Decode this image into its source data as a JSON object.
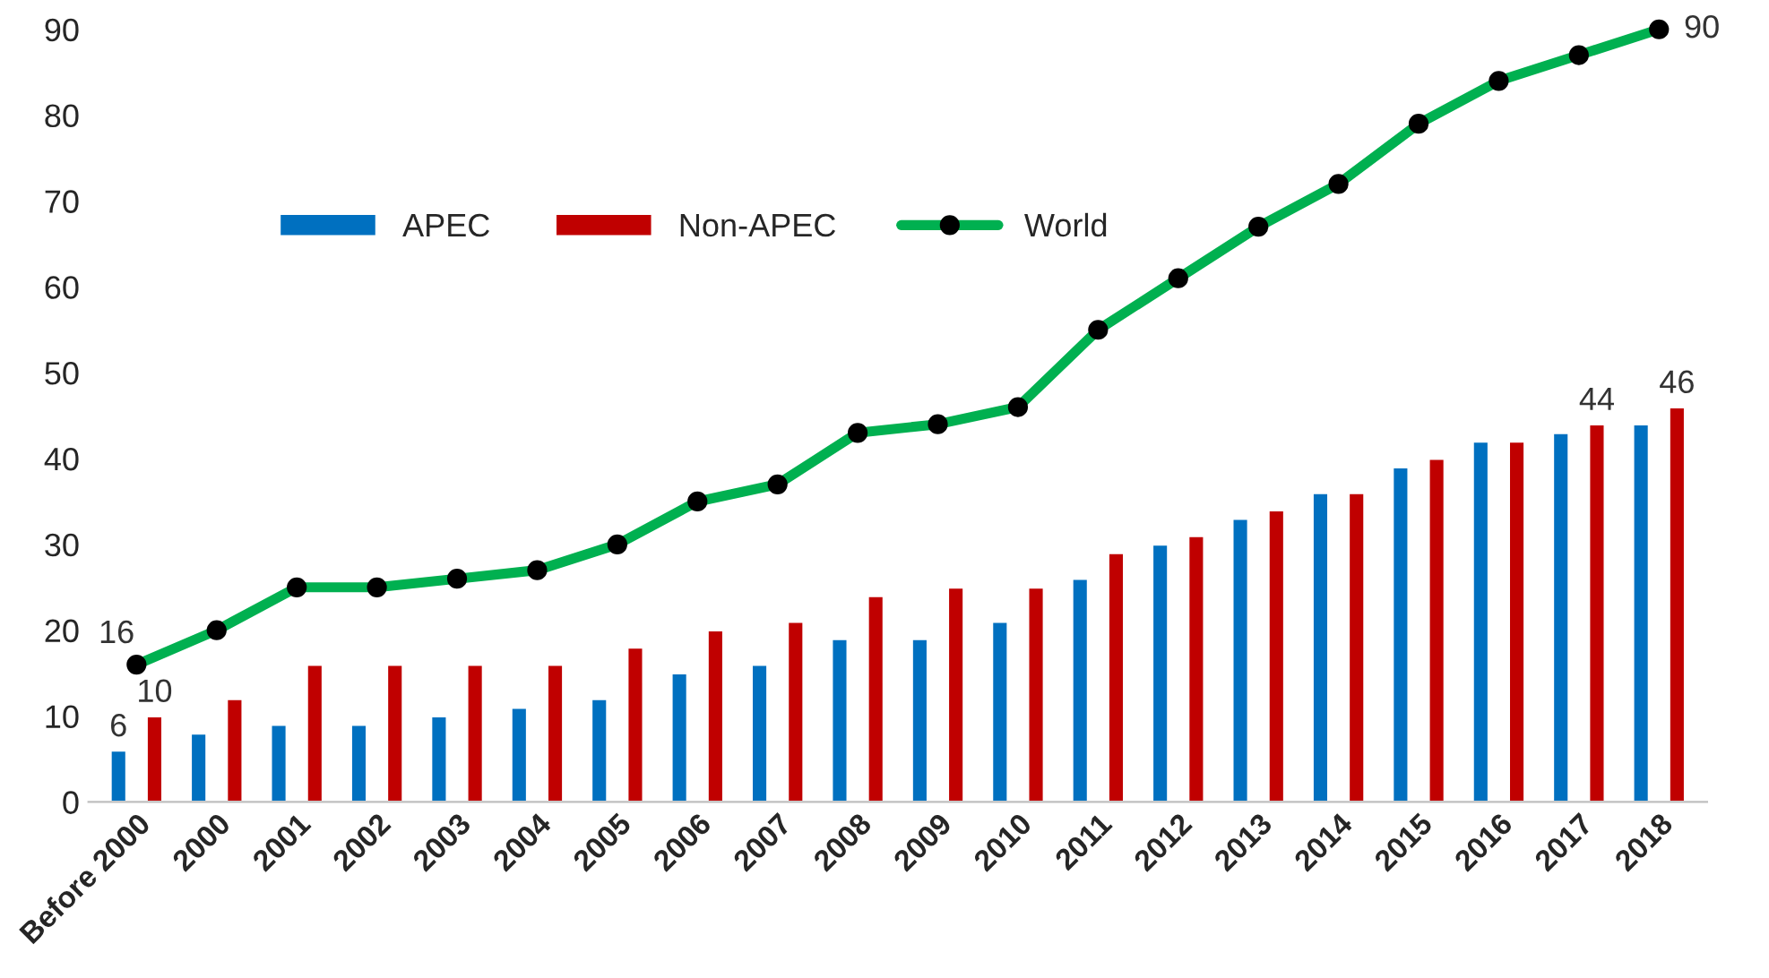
{
  "chart_data": {
    "type": "bar",
    "categories": [
      "Before 2000",
      "2000",
      "2001",
      "2002",
      "2003",
      "2004",
      "2005",
      "2006",
      "2007",
      "2008",
      "2009",
      "2010",
      "2011",
      "2012",
      "2013",
      "2014",
      "2015",
      "2016",
      "2017",
      "2018"
    ],
    "series": [
      {
        "name": "APEC",
        "color": "#0070c0",
        "values": [
          6,
          8,
          9,
          9,
          10,
          11,
          12,
          15,
          16,
          19,
          19,
          21,
          26,
          30,
          33,
          36,
          39,
          42,
          43,
          44
        ],
        "value_labels": [
          "6",
          null,
          null,
          null,
          null,
          null,
          null,
          null,
          null,
          null,
          null,
          null,
          null,
          null,
          null,
          null,
          null,
          null,
          null,
          null
        ]
      },
      {
        "name": "Non-APEC",
        "color": "#c00000",
        "values": [
          10,
          12,
          16,
          16,
          16,
          16,
          18,
          20,
          21,
          24,
          25,
          25,
          29,
          31,
          34,
          36,
          40,
          42,
          44,
          46
        ],
        "value_labels": [
          "10",
          null,
          null,
          null,
          null,
          null,
          null,
          null,
          null,
          null,
          null,
          null,
          null,
          null,
          null,
          null,
          null,
          null,
          "44",
          "46"
        ]
      },
      {
        "name": "World",
        "type": "line",
        "color": "#00b050",
        "marker": "circle",
        "values": [
          16,
          20,
          25,
          25,
          26,
          27,
          30,
          35,
          37,
          43,
          44,
          46,
          55,
          61,
          67,
          72,
          79,
          84,
          87,
          90
        ],
        "value_labels": [
          "16",
          null,
          null,
          null,
          null,
          null,
          null,
          null,
          null,
          null,
          null,
          null,
          null,
          null,
          null,
          null,
          null,
          null,
          null,
          "90"
        ]
      }
    ],
    "ylim": [
      0,
      90
    ],
    "yticks": [
      0,
      10,
      20,
      30,
      40,
      50,
      60,
      70,
      80,
      90
    ],
    "grid": false,
    "legend": "top left"
  }
}
